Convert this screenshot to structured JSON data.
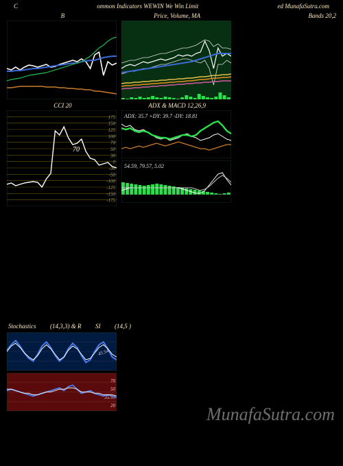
{
  "header": {
    "left": "C",
    "center": "ommon Indicators WEWIN We Win Limit",
    "right": "ed MunafaSutra.com"
  },
  "watermark": "MunafaSutra.com",
  "panels": {
    "bbands": {
      "title": "B",
      "title_right": "Bands 20,2",
      "width": 160,
      "height": 115,
      "bg": "#000",
      "border": "#143020",
      "lines": [
        {
          "color": "#ffffff",
          "width": 1.6,
          "y": [
            70,
            72,
            68,
            72,
            68,
            65,
            66,
            68,
            66,
            64,
            68,
            67,
            64,
            62,
            60,
            58,
            60,
            56,
            60,
            70,
            50,
            46,
            80,
            60,
            65,
            62
          ]
        },
        {
          "color": "#3b6bd8",
          "width": 2.0,
          "y": [
            74,
            74,
            73,
            73,
            72,
            71,
            70,
            70,
            69,
            68,
            67,
            66,
            65,
            64,
            63,
            62,
            62,
            60,
            59,
            58,
            58,
            56,
            54,
            53,
            52,
            52
          ]
        },
        {
          "color": "#20a84a",
          "width": 1.4,
          "y": [
            88,
            86,
            85,
            84,
            82,
            80,
            79,
            78,
            77,
            76,
            74,
            72,
            70,
            68,
            66,
            64,
            62,
            60,
            56,
            52,
            46,
            40,
            36,
            30,
            26,
            24
          ]
        },
        {
          "color": "#c97e2a",
          "width": 1.4,
          "y": [
            98,
            98,
            97,
            96,
            96,
            96,
            96,
            96,
            96,
            97,
            97,
            97,
            98,
            98,
            99,
            99,
            100,
            100,
            101,
            101,
            103,
            103,
            104,
            105,
            106,
            107
          ]
        }
      ]
    },
    "price": {
      "title": "Price, Volume, MA",
      "width": 160,
      "height": 115,
      "bg": "#073012",
      "border": "#143020",
      "lines": [
        {
          "color": "#ffffff",
          "width": 1.2,
          "y": [
            70,
            66,
            64,
            66,
            63,
            60,
            62,
            60,
            58,
            56,
            58,
            56,
            54,
            50,
            52,
            50,
            52,
            48,
            46,
            30,
            44,
            70,
            40,
            52,
            48,
            52
          ]
        },
        {
          "color": "#dddddd",
          "width": 0.8,
          "y": [
            62,
            60,
            58,
            58,
            56,
            54,
            54,
            52,
            50,
            48,
            48,
            46,
            44,
            42,
            40,
            40,
            38,
            36,
            32,
            28,
            30,
            38,
            34,
            40,
            40,
            42
          ]
        },
        {
          "color": "#dddddd",
          "width": 0.8,
          "y": [
            78,
            76,
            74,
            74,
            72,
            70,
            70,
            68,
            66,
            64,
            64,
            62,
            60,
            58,
            56,
            56,
            58,
            60,
            62,
            58,
            70,
            94,
            64,
            64,
            58,
            62
          ]
        },
        {
          "color": "#3b6bd8",
          "width": 2.0,
          "y": [
            76,
            75,
            74,
            73,
            72,
            71,
            70,
            69,
            68,
            67,
            66,
            65,
            64,
            63,
            62,
            61,
            60,
            58,
            56,
            54,
            52,
            50,
            48,
            48,
            48,
            48
          ]
        },
        {
          "color": "#e89020",
          "width": 1.4,
          "y": [
            96,
            95,
            95,
            94,
            94,
            93,
            93,
            92,
            92,
            91,
            91,
            90,
            90,
            89,
            89,
            88,
            88,
            87,
            86,
            86,
            85,
            84,
            84,
            83,
            83,
            82
          ]
        },
        {
          "color": "#e4c04a",
          "width": 1.4,
          "y": [
            92,
            91,
            91,
            90,
            90,
            89,
            89,
            88,
            88,
            87,
            87,
            86,
            86,
            85,
            85,
            84,
            84,
            83,
            82,
            82,
            81,
            80,
            80,
            79,
            79,
            78
          ]
        },
        {
          "color": "#d45aa0",
          "width": 1.4,
          "y": [
            100,
            99,
            99,
            98,
            98,
            97,
            97,
            96,
            96,
            95,
            95,
            94,
            94,
            93,
            93,
            92,
            92,
            91,
            91,
            90,
            90,
            89,
            89,
            88,
            88,
            88
          ]
        }
      ],
      "volume": {
        "color": "#2be04a",
        "y": [
          2,
          1,
          3,
          2,
          4,
          2,
          3,
          5,
          3,
          2,
          4,
          3,
          2,
          1,
          3,
          6,
          4,
          2,
          8,
          5,
          3,
          2,
          4,
          10,
          6,
          3
        ]
      }
    },
    "cci": {
      "title": "CCI 20",
      "width": 160,
      "height": 140,
      "bg": "#000",
      "border": "#143020",
      "grid_color": "#6a5a10",
      "axis_labels": [
        "175",
        "150",
        "125",
        "100",
        "70",
        "50",
        "30",
        "0",
        "-30",
        "-50",
        "-100",
        "-125",
        "-150",
        "-175"
      ],
      "marker": {
        "label": "70",
        "y": 60
      },
      "line": {
        "color": "#ffffff",
        "width": 1.4,
        "y": [
          108,
          106,
          110,
          108,
          106,
          105,
          104,
          105,
          112,
          100,
          92,
          30,
          36,
          24,
          40,
          50,
          48,
          42,
          60,
          70,
          72,
          80,
          78,
          76,
          82,
          84
        ]
      }
    },
    "adx": {
      "title": "ADX  & MACD 12,26,9",
      "text": "ADX: 35.7 +DY: 39.7 -DY: 18.81",
      "width": 160,
      "height": 70,
      "bg": "#000",
      "border": "#143020",
      "lines": [
        {
          "color": "#ffffff",
          "width": 1.0,
          "y": [
            20,
            24,
            22,
            28,
            30,
            28,
            32,
            36,
            40,
            42,
            40,
            44,
            42,
            40,
            36,
            34,
            38,
            40,
            44,
            42,
            40,
            36,
            34,
            38,
            42,
            44
          ]
        },
        {
          "color": "#2be04a",
          "width": 2.4,
          "y": [
            26,
            28,
            26,
            30,
            32,
            30,
            32,
            36,
            38,
            40,
            40,
            42,
            40,
            38,
            36,
            36,
            38,
            36,
            30,
            26,
            22,
            18,
            16,
            22,
            30,
            34
          ]
        },
        {
          "color": "#c97e2a",
          "width": 1.2,
          "y": [
            56,
            54,
            56,
            54,
            52,
            54,
            52,
            50,
            48,
            50,
            52,
            50,
            48,
            46,
            48,
            50,
            52,
            54,
            56,
            56,
            58,
            56,
            54,
            52,
            50,
            50
          ]
        }
      ]
    },
    "macd": {
      "text": "54.59, 79.57, 5.02",
      "width": 160,
      "height": 62,
      "bg": "#000",
      "border": "#143020",
      "bars": {
        "color": "#2be04a",
        "y": [
          18,
          17,
          16,
          15,
          14,
          13,
          14,
          15,
          16,
          15,
          14,
          13,
          12,
          11,
          10,
          9,
          8,
          7,
          6,
          5,
          4,
          3,
          2,
          1,
          2,
          3
        ]
      },
      "lines": [
        {
          "color": "#ffffff",
          "width": 1.0,
          "y": [
            44,
            42,
            40,
            40,
            40,
            40,
            40,
            40,
            40,
            40,
            40,
            40,
            40,
            40,
            42,
            44,
            46,
            48,
            48,
            44,
            36,
            28,
            20,
            18,
            28,
            36
          ]
        },
        {
          "color": "#cccccc",
          "width": 1.0,
          "y": [
            40,
            40,
            40,
            40,
            40,
            40,
            40,
            40,
            40,
            40,
            40,
            40,
            40,
            40,
            40,
            40,
            40,
            42,
            44,
            42,
            38,
            32,
            26,
            22,
            26,
            32
          ]
        }
      ]
    },
    "stoch": {
      "title_left": "Stochastics",
      "title_center": "(14,3,3) & R",
      "title_center2": "SI",
      "title_right": "(14,5                     )",
      "width": 160,
      "height": 56,
      "bg": "#001a40",
      "border": "#143020",
      "grid": [
        14,
        28,
        42
      ],
      "marker": "45.54",
      "lines": [
        {
          "color": "#4a7aee",
          "width": 2.0,
          "y": [
            26,
            18,
            12,
            20,
            30,
            38,
            42,
            32,
            20,
            14,
            22,
            34,
            42,
            36,
            24,
            16,
            22,
            34,
            44,
            40,
            28,
            18,
            14,
            24,
            36,
            40
          ]
        },
        {
          "color": "#ffffff",
          "width": 1.0,
          "y": [
            28,
            20,
            16,
            22,
            30,
            36,
            40,
            34,
            24,
            18,
            24,
            32,
            40,
            36,
            26,
            20,
            24,
            32,
            40,
            38,
            30,
            22,
            18,
            24,
            32,
            36
          ]
        }
      ]
    },
    "rsi": {
      "width": 160,
      "height": 56,
      "bg": "#5a0a0a",
      "border": "#143020",
      "grid": [
        14,
        28,
        42
      ],
      "axis": [
        "70",
        "50",
        "35.99",
        "20"
      ],
      "lines": [
        {
          "color": "#4a7aee",
          "width": 1.8,
          "y": [
            26,
            24,
            26,
            28,
            30,
            32,
            34,
            32,
            30,
            28,
            26,
            24,
            22,
            26,
            20,
            18,
            24,
            30,
            28,
            26,
            30,
            32,
            34,
            32,
            34,
            36
          ]
        },
        {
          "color": "#ffffff",
          "width": 0.9,
          "y": [
            24,
            24,
            26,
            28,
            30,
            30,
            32,
            32,
            30,
            28,
            28,
            26,
            24,
            24,
            22,
            22,
            24,
            28,
            28,
            28,
            30,
            30,
            32,
            32,
            32,
            34
          ]
        }
      ]
    }
  }
}
